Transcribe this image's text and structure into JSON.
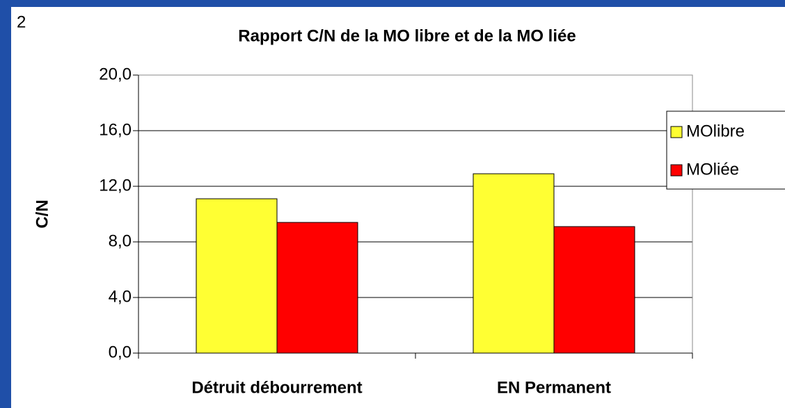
{
  "slide_number": "2",
  "chart_data": {
    "type": "bar",
    "title": "Rapport C/N de la MO libre et de la MO liée",
    "y_label": "C/N",
    "categories": [
      "Détruit débourrement",
      "EN Permanent"
    ],
    "series": [
      {
        "name": "MOlibre",
        "color": "#ffff33",
        "values": [
          11.1,
          12.9
        ]
      },
      {
        "name": "MOliée",
        "color": "#ff0000",
        "values": [
          9.4,
          9.1
        ]
      }
    ],
    "ylim": [
      0,
      20
    ],
    "yticks": [
      {
        "value": 0,
        "label": "0,0"
      },
      {
        "value": 4,
        "label": "4,0"
      },
      {
        "value": 8,
        "label": "8,0"
      },
      {
        "value": 12,
        "label": "12,0"
      },
      {
        "value": 16,
        "label": "16,0"
      },
      {
        "value": 20,
        "label": "20,0"
      }
    ],
    "grid": true,
    "legend": "right"
  }
}
